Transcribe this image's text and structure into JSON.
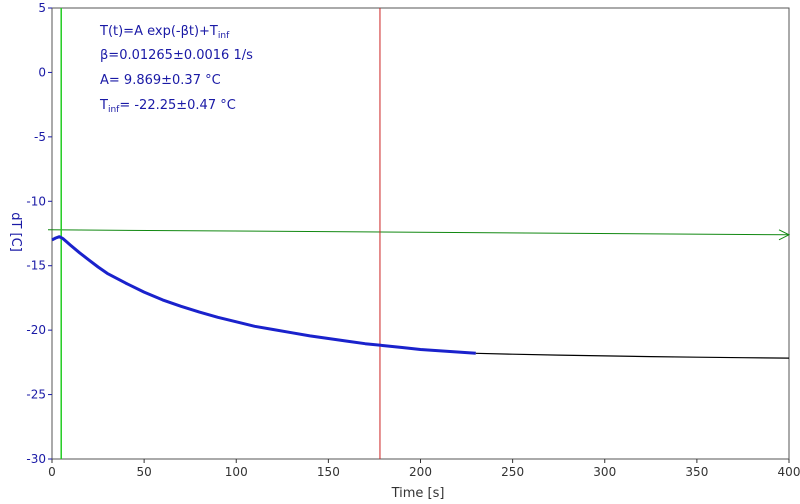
{
  "chart_data": {
    "type": "line",
    "xlabel": "Time [s]",
    "ylabel": "dT [C]",
    "xlim": [
      0,
      400
    ],
    "ylim": [
      -30,
      5
    ],
    "xticks": [
      0,
      50,
      100,
      150,
      200,
      250,
      300,
      350,
      400
    ],
    "yticks": [
      5,
      0,
      -5,
      -10,
      -15,
      -20,
      -25,
      -30
    ],
    "grid": false,
    "annotation": {
      "line1": "T(t)=A exp(-βt)+T",
      "line1_sub": "inf",
      "line2": "β=0.01265±0.0016 1/s",
      "line3": "A= 9.869±0.37 °C",
      "line4_main": "T",
      "line4_sub": "inf",
      "line4_rest": "= -22.25±0.47 °C"
    },
    "fit": {
      "A": 9.869,
      "beta": 0.01265,
      "T_inf": -22.25
    },
    "markers": {
      "green_vertical_x": 5,
      "red_vertical_x": 178,
      "horizontal_y": -12.6
    },
    "series": [
      {
        "color": "#1a22cc",
        "x": [
          0,
          2,
          4,
          6,
          8,
          10,
          15,
          20,
          25,
          30,
          40,
          50,
          60,
          70,
          80,
          90,
          100,
          110,
          120,
          130,
          140,
          150,
          160,
          170,
          180,
          190,
          200,
          210,
          220,
          230
        ],
        "y": [
          -13.0,
          -12.85,
          -12.75,
          -12.9,
          -13.15,
          -13.4,
          -14.0,
          -14.55,
          -15.1,
          -15.6,
          -16.35,
          -17.05,
          -17.65,
          -18.15,
          -18.6,
          -19.0,
          -19.35,
          -19.7,
          -19.95,
          -20.2,
          -20.45,
          -20.65,
          -20.85,
          -21.05,
          -21.2,
          -21.35,
          -21.5,
          -21.6,
          -21.7,
          -21.8
        ]
      },
      {
        "color": "#000000",
        "x": [
          230,
          250,
          275,
          300,
          325,
          350,
          375,
          400
        ],
        "y": [
          -21.8,
          -21.87,
          -21.94,
          -22.0,
          -22.05,
          -22.1,
          -22.14,
          -22.17
        ]
      }
    ]
  },
  "colors": {
    "axis": "#1a1aa6",
    "green_marker": "#22cc22",
    "red_marker": "#cc2222",
    "horizontal_marker": "#118811"
  }
}
